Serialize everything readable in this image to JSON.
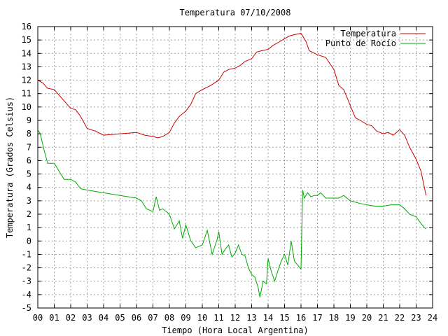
{
  "chart_data": {
    "type": "line",
    "title": "Temperatura 07/10/2008",
    "xlabel": "Tiempo (Hora Local Argentina)",
    "ylabel": "Temperatura (Grados Celsius)",
    "xlim": [
      0,
      24
    ],
    "ylim": [
      -5,
      16
    ],
    "x_ticks": [
      "00",
      "01",
      "02",
      "03",
      "04",
      "05",
      "06",
      "07",
      "08",
      "09",
      "10",
      "11",
      "12",
      "13",
      "14",
      "15",
      "16",
      "17",
      "18",
      "19",
      "20",
      "21",
      "22",
      "23",
      "24"
    ],
    "y_ticks": [
      "16",
      "15",
      "14",
      "13",
      "12",
      "11",
      "10",
      "9",
      "8",
      "7",
      "6",
      "5",
      "4",
      "3",
      "2",
      "1",
      "0",
      "-1",
      "-2",
      "-3",
      "-4",
      "-5"
    ],
    "grid": true,
    "legend_position": "top-right",
    "series": [
      {
        "name": "Temperatura",
        "color": "#cc0000",
        "x": [
          0,
          0.3,
          0.6,
          1.0,
          1.5,
          2.0,
          2.3,
          2.6,
          3.0,
          3.5,
          4.0,
          5.0,
          6.0,
          6.5,
          7.0,
          7.3,
          7.6,
          8.0,
          8.3,
          8.6,
          9.0,
          9.3,
          9.6,
          10.0,
          10.5,
          11.0,
          11.3,
          11.6,
          12.0,
          12.3,
          12.6,
          13.0,
          13.3,
          13.6,
          14.0,
          14.3,
          14.6,
          15.0,
          15.3,
          15.6,
          16.0,
          16.3,
          16.5,
          17.0,
          17.5,
          18.0,
          18.3,
          18.6,
          19.0,
          19.3,
          19.6,
          20.0,
          20.3,
          20.6,
          21.0,
          21.3,
          21.6,
          22.0,
          22.3,
          22.6,
          23.0,
          23.3,
          23.6
        ],
        "y": [
          12,
          11.8,
          11.4,
          11.3,
          10.6,
          9.9,
          9.8,
          9.3,
          8.4,
          8.2,
          7.9,
          8.0,
          8.1,
          7.9,
          7.8,
          7.7,
          7.8,
          8.1,
          8.8,
          9.3,
          9.7,
          10.2,
          11.0,
          11.3,
          11.6,
          12.0,
          12.6,
          12.8,
          12.9,
          13.1,
          13.4,
          13.6,
          14.1,
          14.2,
          14.3,
          14.6,
          14.8,
          15.1,
          15.3,
          15.4,
          15.5,
          14.9,
          14.2,
          13.9,
          13.7,
          12.8,
          11.6,
          11.3,
          10.1,
          9.2,
          9.0,
          8.7,
          8.6,
          8.2,
          8.0,
          8.1,
          7.9,
          8.3,
          7.9,
          7.0,
          6.1,
          5.2,
          3.4
        ]
      },
      {
        "name": "Punto de Rocío",
        "color": "#00aa00",
        "x": [
          0,
          0.15,
          0.4,
          0.6,
          1.0,
          1.3,
          1.6,
          2.0,
          2.3,
          2.6,
          3.0,
          3.5,
          4.0,
          5.0,
          6.0,
          6.3,
          6.6,
          7.0,
          7.2,
          7.4,
          7.6,
          8.0,
          8.3,
          8.6,
          8.8,
          9.0,
          9.3,
          9.6,
          10.0,
          10.3,
          10.6,
          10.9,
          11.0,
          11.2,
          11.4,
          11.6,
          11.8,
          12.0,
          12.2,
          12.4,
          12.6,
          12.8,
          13.0,
          13.2,
          13.4,
          13.5,
          13.7,
          13.9,
          14.0,
          14.2,
          14.4,
          14.6,
          14.8,
          15.0,
          15.2,
          15.4,
          15.6,
          16.0,
          16.1,
          16.2,
          16.4,
          16.6,
          16.8,
          17.0,
          17.2,
          17.5,
          17.8,
          18.0,
          18.3,
          18.6,
          19.0,
          19.3,
          19.6,
          20.0,
          20.5,
          21.0,
          21.5,
          22.0,
          22.3,
          22.6,
          23.0,
          23.3,
          23.5,
          23.6
        ],
        "y": [
          8.3,
          8.0,
          6.7,
          5.8,
          5.8,
          5.2,
          4.6,
          4.6,
          4.4,
          3.9,
          3.8,
          3.7,
          3.6,
          3.4,
          3.2,
          3.0,
          2.4,
          2.2,
          3.3,
          2.3,
          2.4,
          2.0,
          0.9,
          1.5,
          0.2,
          1.2,
          0.0,
          -0.5,
          -0.3,
          0.8,
          -1.0,
          0.1,
          0.7,
          -1.0,
          -0.6,
          -0.3,
          -1.2,
          -0.9,
          -0.3,
          -1.0,
          -1.1,
          -2.0,
          -2.5,
          -2.7,
          -3.5,
          -4.2,
          -3.0,
          -3.2,
          -1.3,
          -2.3,
          -3.0,
          -2.2,
          -1.5,
          -1.0,
          -1.8,
          0.0,
          -1.5,
          -2.1,
          3.8,
          3.2,
          3.6,
          3.3,
          3.4,
          3.4,
          3.6,
          3.2,
          3.2,
          3.2,
          3.2,
          3.4,
          3.0,
          2.9,
          2.8,
          2.7,
          2.6,
          2.6,
          2.7,
          2.7,
          2.4,
          2.0,
          1.8,
          1.3,
          1.0,
          0.9
        ]
      }
    ]
  }
}
